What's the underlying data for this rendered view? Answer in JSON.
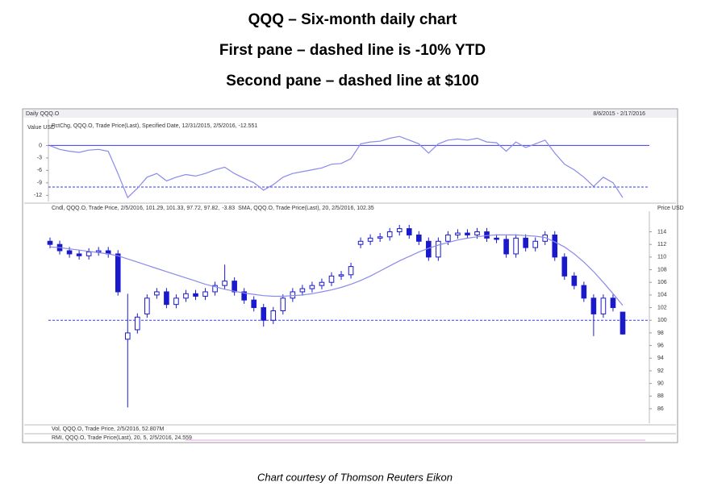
{
  "header": {
    "lines": [
      "QQQ – Six-month daily chart",
      "First pane – dashed line is -10% YTD",
      "Second pane – dashed line at $100"
    ]
  },
  "caption": "Chart courtesy of Thomson Reuters Eikon",
  "panel": {
    "name": "Daily QQQ.O",
    "range": "8/6/2015 - 2/17/2016"
  },
  "lower_panes": {
    "vol_legend": "Vol, QQQ.O, Trade Price, 2/5/2016, 52.807M",
    "rmi_legend": "RMI, QQQ.O, Trade Price(Last), 20, 5, 2/5/2016, 24.559"
  },
  "chart_data": [
    {
      "type": "line",
      "legend": "PctChg, QQQ.O, Trade Price(Last), Specified Date, 12/31/2015, 2/5/2016, -12.551",
      "y_label": "Value USD",
      "ylim": [
        -13.5,
        5.9
      ],
      "yticks": [
        0,
        -3,
        -6,
        -9,
        -12
      ],
      "ref_lines": [
        {
          "value": 0,
          "dashed": false
        },
        {
          "value": -10,
          "dashed": true
        }
      ],
      "series": [
        {
          "name": "PctChg",
          "color": "#8a8aee",
          "values": [
            -0.05,
            -0.95,
            -1.39,
            -1.66,
            -1.12,
            -0.95,
            -1.39,
            -6.75,
            -12.55,
            -10.32,
            -7.64,
            -6.75,
            -8.53,
            -7.64,
            -7.01,
            -7.37,
            -6.75,
            -5.85,
            -5.23,
            -6.75,
            -7.91,
            -8.98,
            -10.76,
            -9.42,
            -7.64,
            -6.75,
            -6.3,
            -5.85,
            -5.41,
            -4.52,
            -4.34,
            -3.18,
            0.39,
            0.84,
            1.02,
            1.73,
            2.18,
            1.29,
            0.39,
            -1.84,
            0.39,
            1.29,
            1.55,
            1.29,
            1.73,
            0.84,
            0.66,
            -1.39,
            0.84,
            -0.5,
            0.39,
            1.29,
            -1.84,
            -4.52,
            -5.85,
            -7.64,
            -9.87,
            -7.64,
            -8.98,
            -12.551
          ]
        }
      ]
    },
    {
      "type": "candlestick",
      "legend": "Cndl, QQQ.O, Trade Price, 2/5/2016, 101.29, 101.33, 97.72, 97.82,",
      "legend_change": "-3.83",
      "legend_sma": "SMA, QQQ.O, Trade Price(Last), 20, 2/5/2016, 102.35",
      "y_label": "Price USD",
      "ylim": [
        83.7,
        117
      ],
      "yticks": [
        86,
        88,
        90,
        92,
        94,
        96,
        98,
        100,
        102,
        104,
        106,
        108,
        110,
        112,
        114
      ],
      "ref_lines": [
        {
          "value": 100,
          "dashed": true
        }
      ],
      "color": "#1a1acc",
      "open": [
        112.5,
        112,
        111,
        110.5,
        110.2,
        110.8,
        111,
        110.5,
        97,
        98.5,
        101,
        104,
        104.5,
        102.5,
        103.5,
        104.2,
        103.8,
        104.5,
        105.5,
        106.2,
        104.5,
        103.2,
        102,
        100,
        101.5,
        103.5,
        104.5,
        105,
        105.5,
        106,
        107,
        107.2,
        112,
        112.5,
        113,
        113.2,
        114,
        114.5,
        113.5,
        112.5,
        110,
        112.5,
        113.5,
        113.8,
        113.5,
        114,
        113,
        112.8,
        110.5,
        113,
        111.5,
        112.5,
        113.5,
        110,
        107,
        105.5,
        103.5,
        101,
        103.5,
        101.29
      ],
      "high": [
        113.1,
        112.6,
        111.6,
        111.1,
        111.4,
        111.6,
        111.6,
        111.1,
        104.2,
        101.1,
        104.1,
        105.1,
        105.1,
        104.1,
        104.8,
        104.8,
        105.1,
        106.1,
        108.8,
        106.8,
        105.1,
        103.8,
        102.6,
        102.1,
        104.1,
        105.1,
        105.6,
        106.1,
        106.6,
        107.6,
        107.8,
        109.1,
        113.1,
        113.6,
        113.8,
        114.6,
        115.1,
        115.1,
        114.1,
        113.1,
        113.1,
        114.1,
        114.4,
        114.4,
        114.6,
        114.6,
        113.6,
        113.4,
        113.6,
        113.6,
        113.1,
        114.1,
        114.1,
        110.6,
        107.6,
        106.1,
        104.1,
        104.1,
        104.1,
        101.33
      ],
      "low": [
        111.4,
        110.4,
        109.9,
        109.6,
        109.6,
        110.2,
        109.9,
        103.9,
        86.2,
        97.9,
        100.4,
        103.4,
        101.9,
        101.9,
        102.9,
        103.2,
        103.2,
        103.9,
        104.9,
        103.9,
        102.6,
        101.4,
        99,
        99.4,
        100.9,
        102.9,
        103.9,
        104.4,
        104.9,
        105.4,
        106.4,
        106.6,
        111.4,
        111.9,
        112.4,
        112.6,
        113.4,
        112.9,
        111.9,
        109.4,
        109.4,
        111.9,
        112.9,
        112.9,
        112.9,
        112.4,
        112.2,
        109.9,
        109.9,
        110.9,
        110.9,
        111.9,
        109.4,
        106.4,
        104.9,
        102.9,
        97.5,
        100.4,
        101.4,
        97.72
      ],
      "close": [
        112,
        111,
        110.5,
        110.2,
        110.8,
        111,
        110.5,
        104.5,
        98,
        100.5,
        103.5,
        104.5,
        102.5,
        103.5,
        104.2,
        103.8,
        104.5,
        105.5,
        106.2,
        104.5,
        103.2,
        102,
        100,
        101.5,
        103.5,
        104.5,
        105,
        105.5,
        106,
        107,
        107.2,
        108.5,
        112.5,
        113,
        113.2,
        114,
        114.5,
        113.5,
        112.5,
        110,
        112.5,
        113.5,
        113.8,
        113.5,
        114,
        113,
        112.8,
        110.5,
        113,
        111.5,
        112.5,
        113.5,
        110,
        107,
        105.5,
        103.5,
        101,
        103.5,
        102,
        97.82
      ],
      "series": [
        {
          "name": "SMA",
          "color": "#8a8aee",
          "values": [
            111.6,
            111.5,
            111.3,
            111.1,
            110.9,
            110.7,
            110.5,
            110.2,
            109.7,
            109.2,
            108.7,
            108.2,
            107.7,
            107.2,
            106.7,
            106.2,
            105.7,
            105.3,
            104.9,
            104.6,
            104.3,
            104.1,
            103.9,
            103.8,
            103.8,
            103.9,
            104,
            104.2,
            104.5,
            104.8,
            105.2,
            105.7,
            106.3,
            107,
            107.8,
            108.6,
            109.4,
            110.1,
            110.8,
            111.4,
            111.9,
            112.3,
            112.7,
            113,
            113.2,
            113.4,
            113.5,
            113.5,
            113.5,
            113.4,
            113.3,
            113.1,
            112.4,
            111.6,
            110.5,
            109.2,
            107.7,
            106.0,
            104.2,
            102.35
          ]
        }
      ]
    }
  ]
}
